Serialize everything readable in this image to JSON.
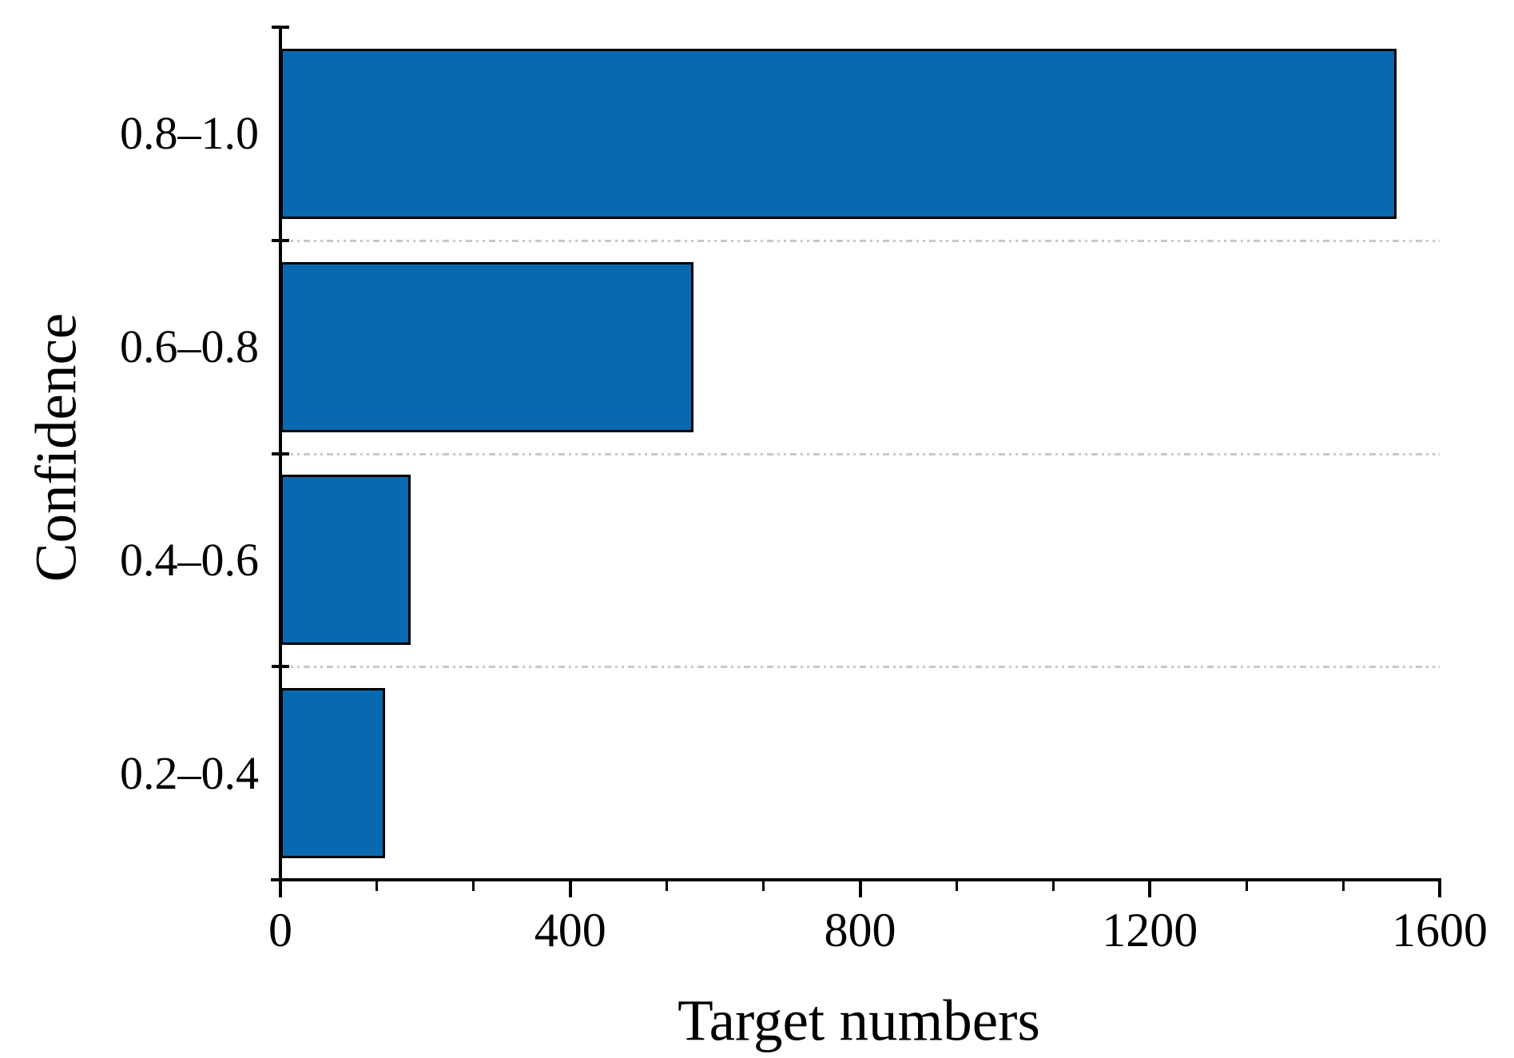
{
  "chart_data": {
    "type": "bar",
    "orientation": "horizontal",
    "title": "",
    "xlabel": "Target numbers",
    "ylabel": "Confidence",
    "categories": [
      "0.8–1.0",
      "0.6–0.8",
      "0.4–0.6",
      "0.2–0.4"
    ],
    "values": [
      1540,
      570,
      180,
      145
    ],
    "xlim": [
      0,
      1600
    ],
    "x_ticks": [
      0,
      400,
      800,
      1200,
      1600
    ],
    "x_tick_labels": [
      "0",
      "400",
      "800",
      "1200",
      "1600"
    ],
    "minor_ticks_per_interval": 2,
    "bar_color": "#0869b0",
    "bar_border_color": "#000000",
    "axis_color": "#000000",
    "grid": "dashed separator lines between category bands",
    "grid_color": "#c8c8c8",
    "legend": "none"
  }
}
